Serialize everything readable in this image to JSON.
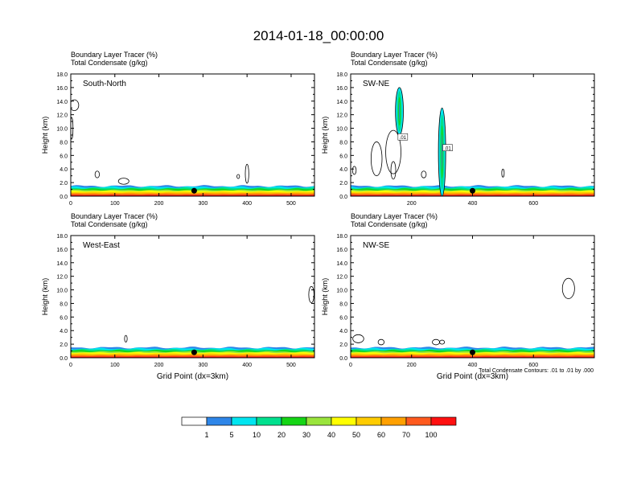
{
  "title": "2014-01-18_00:00:00",
  "colors": {
    "contour": "#000000",
    "marker": "#000000",
    "bands": [
      "#FFFFFF",
      "#2E86E8",
      "#00E5F0",
      "#00E08E",
      "#15D515",
      "#9AE43C",
      "#FFFF00",
      "#FFCC00",
      "#FFA000",
      "#FF5A1E",
      "#FF1010"
    ]
  },
  "colorbar": {
    "labels": [
      "1",
      "5",
      "10",
      "20",
      "30",
      "40",
      "50",
      "60",
      "70",
      "100"
    ]
  },
  "footnote": "Total Condensate Contours: .01 to .01 by .000",
  "chart_data": [
    {
      "type": "filled-contour",
      "name": "South-North",
      "subtitle1": "Boundary Layer Tracer   (%)",
      "subtitle2": "Total Condensate   (g/kg)",
      "ylabel": "Height (km)",
      "xlabel": "",
      "ylim": [
        0,
        18
      ],
      "xlim": [
        0,
        553
      ],
      "yticks": [
        "0.0",
        "2.0",
        "4.0",
        "6.0",
        "8.0",
        "10.0",
        "12.0",
        "14.0",
        "16.0",
        "18.0"
      ],
      "xticks": [
        0,
        100,
        200,
        300,
        400,
        500
      ],
      "boundary_layer_top_km": 1.5,
      "marker_x": 280,
      "contour_labels": []
    },
    {
      "type": "filled-contour",
      "name": "SW-NE",
      "subtitle1": "Boundary Layer Tracer   (%)",
      "subtitle2": "Total Condensate   (g/kg)",
      "ylabel": "Height (km)",
      "xlabel": "",
      "ylim": [
        0,
        18
      ],
      "xlim": [
        0,
        800
      ],
      "yticks": [
        "0.0",
        "2.0",
        "4.0",
        "6.0",
        "8.0",
        "10.0",
        "12.0",
        "14.0",
        "16.0",
        "18.0"
      ],
      "xticks": [
        200,
        400,
        600
      ],
      "boundary_layer_top_km": 1.5,
      "marker_x": 400,
      "contour_labels": [
        ".01",
        ".01"
      ]
    },
    {
      "type": "filled-contour",
      "name": "West-East",
      "subtitle1": "Boundary Layer Tracer   (%)",
      "subtitle2": "Total Condensate   (g/kg)",
      "ylabel": "Height (km)",
      "xlabel": "Grid Point (dx=3km)",
      "ylim": [
        0,
        18
      ],
      "xlim": [
        0,
        553
      ],
      "yticks": [
        "0.0",
        "2.0",
        "4.0",
        "6.0",
        "8.0",
        "10.0",
        "12.0",
        "14.0",
        "16.0",
        "18.0"
      ],
      "xticks": [
        0,
        100,
        200,
        300,
        400,
        500
      ],
      "boundary_layer_top_km": 1.5,
      "marker_x": 280,
      "contour_labels": []
    },
    {
      "type": "filled-contour",
      "name": "NW-SE",
      "subtitle1": "Boundary Layer Tracer   (%)",
      "subtitle2": "Total Condensate   (g/kg)",
      "ylabel": "Height (km)",
      "xlabel": "Grid Point (dx=3km)",
      "ylim": [
        0,
        18
      ],
      "xlim": [
        0,
        800
      ],
      "yticks": [
        "0.0",
        "2.0",
        "4.0",
        "6.0",
        "8.0",
        "10.0",
        "12.0",
        "14.0",
        "16.0",
        "18.0"
      ],
      "xticks": [
        0,
        200,
        400,
        600
      ],
      "boundary_layer_top_km": 1.5,
      "marker_x": 400,
      "contour_labels": []
    }
  ]
}
